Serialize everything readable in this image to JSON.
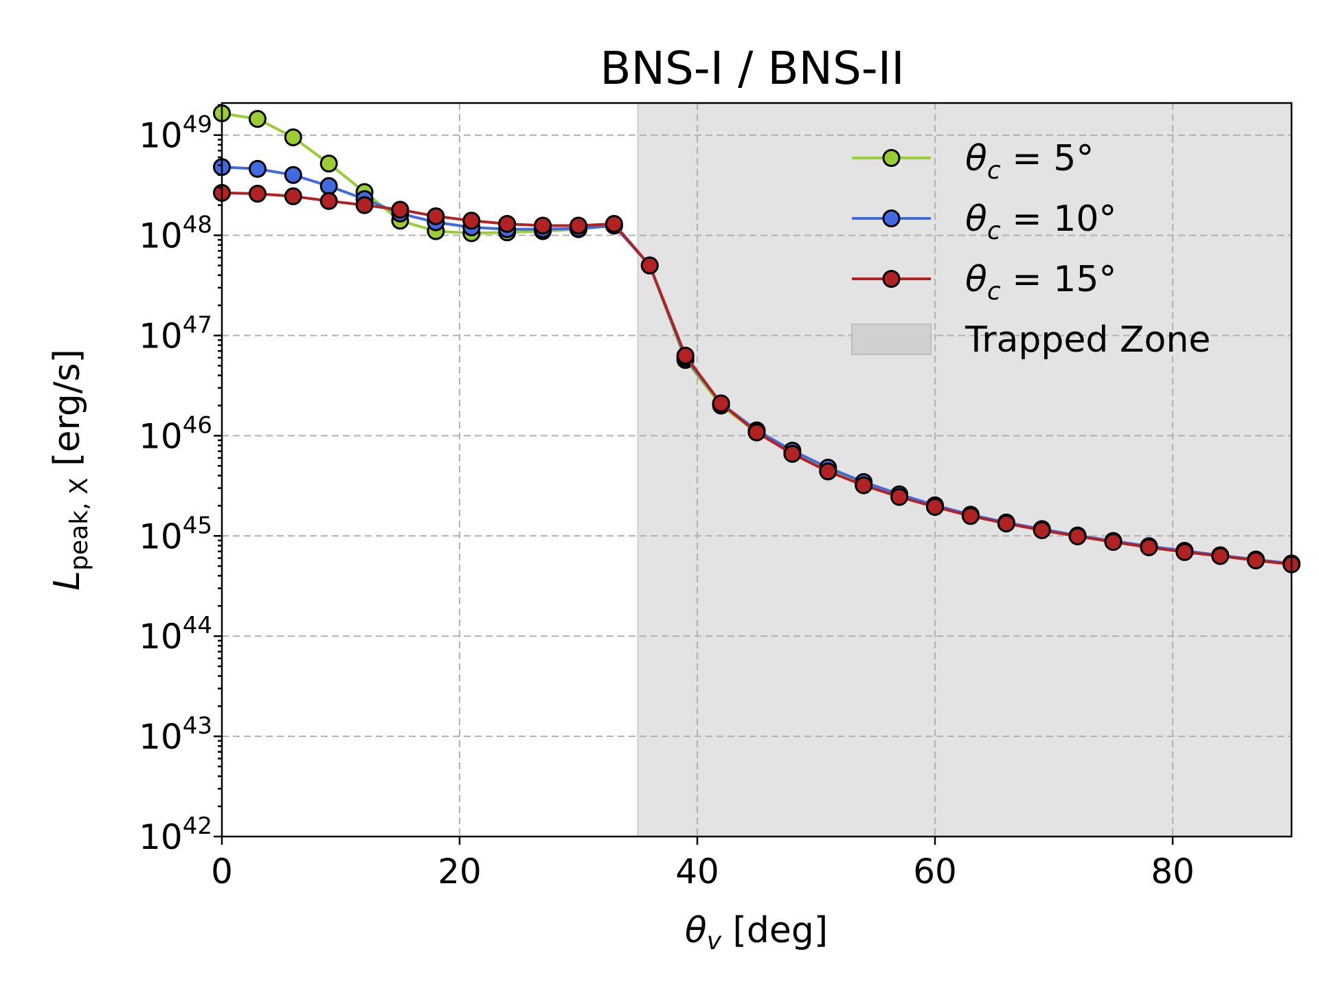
{
  "chart_data": {
    "type": "line",
    "title": "BNS-I / BNS-II",
    "xlabel": "θv [deg]",
    "ylabel": "Lpeak, X [erg/s]",
    "x_label_parts": {
      "symbol": "θ",
      "sub": "v",
      "unit": " [deg]"
    },
    "y_label_parts": {
      "symbol": "L",
      "sub": "peak, X",
      "unit": " [erg/s]"
    },
    "xlim": [
      0,
      90
    ],
    "ylim_log10": [
      42,
      49.32
    ],
    "y_scale": "log",
    "grid": true,
    "legend_position": "top-right",
    "x_ticks": [
      "0",
      "20",
      "40",
      "60",
      "80"
    ],
    "y_ticks": [
      {
        "base": "10",
        "exp": "42"
      },
      {
        "base": "10",
        "exp": "43"
      },
      {
        "base": "10",
        "exp": "44"
      },
      {
        "base": "10",
        "exp": "45"
      },
      {
        "base": "10",
        "exp": "46"
      },
      {
        "base": "10",
        "exp": "47"
      },
      {
        "base": "10",
        "exp": "48"
      },
      {
        "base": "10",
        "exp": "49"
      }
    ],
    "shaded_region": {
      "label": "Trapped Zone",
      "x_start": 35,
      "x_end": 90,
      "color": "#e3e3e3"
    },
    "x": [
      0,
      3,
      6,
      9,
      12,
      15,
      18,
      21,
      24,
      27,
      30,
      33,
      36,
      39,
      42,
      45,
      48,
      51,
      54,
      57,
      60,
      63,
      66,
      69,
      72,
      75,
      78,
      81,
      84,
      87,
      90
    ],
    "series": [
      {
        "name": "θc = 5°",
        "label_parts": {
          "symbol": "θ",
          "sub": "c",
          "rest": " = 5°"
        },
        "color": "#9acd32",
        "values": [
          1.65e+49,
          1.45e+49,
          9.5e+48,
          5.2e+48,
          2.7e+48,
          1.4e+48,
          1.1e+48,
          1.05e+48,
          1.07e+48,
          1.1e+48,
          1.15e+48,
          1.25e+48,
          5e+47,
          5.7e+46,
          2e+46,
          1.08e+46,
          6.6e+45,
          4.5e+45,
          3.3e+45,
          2.5e+45,
          1.95e+45,
          1.6e+45,
          1.35e+45,
          1.15e+45,
          1e+45,
          8.8e+44,
          7.8e+44,
          7e+44,
          6.4e+44,
          5.8e+44,
          5.3e+44
        ]
      },
      {
        "name": "θc = 10°",
        "label_parts": {
          "symbol": "θ",
          "sub": "c",
          "rest": " = 10°"
        },
        "color": "#4169e1",
        "values": [
          4.8e+48,
          4.6e+48,
          4e+48,
          3.1e+48,
          2.3e+48,
          1.65e+48,
          1.35e+48,
          1.2e+48,
          1.15e+48,
          1.15e+48,
          1.17e+48,
          1.25e+48,
          5e+47,
          6e+46,
          2.1e+46,
          1.13e+46,
          7.1e+45,
          4.8e+45,
          3.45e+45,
          2.6e+45,
          2.02e+45,
          1.63e+45,
          1.36e+45,
          1.17e+45,
          1.01e+45,
          8.9e+44,
          7.9e+44,
          7.1e+44,
          6.4e+44,
          5.8e+44,
          5.3e+44
        ]
      },
      {
        "name": "θc = 15°",
        "label_parts": {
          "symbol": "θ",
          "sub": "c",
          "rest": " = 15°"
        },
        "color": "#b22222",
        "values": [
          2.65e+48,
          2.6e+48,
          2.45e+48,
          2.2e+48,
          2e+48,
          1.8e+48,
          1.55e+48,
          1.4e+48,
          1.3e+48,
          1.25e+48,
          1.25e+48,
          1.3e+48,
          5e+47,
          6.3e+46,
          2.1e+46,
          1.08e+46,
          6.6e+45,
          4.4e+45,
          3.2e+45,
          2.45e+45,
          1.95e+45,
          1.58e+45,
          1.33e+45,
          1.14e+45,
          9.9e+44,
          8.7e+44,
          7.7e+44,
          6.9e+44,
          6.3e+44,
          5.7e+44,
          5.2e+44
        ]
      }
    ]
  }
}
